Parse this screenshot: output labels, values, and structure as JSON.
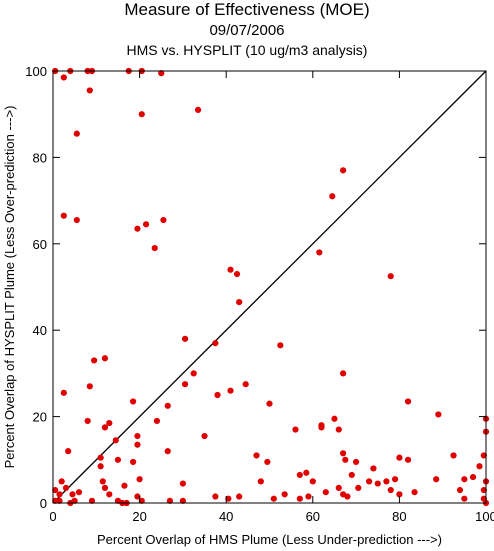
{
  "chart_data": {
    "type": "scatter",
    "title": "Measure of Effectiveness (MOE)",
    "subtitle": "09/07/2006",
    "subtitle2": "HMS vs. HYSPLIT  (10 ug/m3 analysis)",
    "xlabel": "Percent Overlap of HMS Plume (Less Under-prediction --->)",
    "ylabel": "Percent Overlap of HYSPLIT Plume (Less Over-prediction --->)",
    "xlim": [
      0,
      100
    ],
    "ylim": [
      0,
      100
    ],
    "xticks": [
      "0",
      "20",
      "40",
      "60",
      "80",
      "100"
    ],
    "yticks": [
      "0",
      "20",
      "40",
      "60",
      "80",
      "100"
    ],
    "reference_line": "y = x",
    "point_color": "#e00000",
    "points": [
      [
        0.5,
        100
      ],
      [
        2.5,
        98.5
      ],
      [
        4,
        100
      ],
      [
        8,
        100
      ],
      [
        9,
        100
      ],
      [
        17.5,
        100
      ],
      [
        20.5,
        100
      ],
      [
        25,
        99.5
      ],
      [
        8.5,
        95.5
      ],
      [
        5.5,
        85.5
      ],
      [
        20.5,
        90
      ],
      [
        33.5,
        91
      ],
      [
        67,
        77
      ],
      [
        64.5,
        71
      ],
      [
        2.5,
        66.5
      ],
      [
        5.5,
        65.5
      ],
      [
        21.5,
        64.5
      ],
      [
        25.5,
        65.5
      ],
      [
        19.5,
        63.5
      ],
      [
        23.5,
        59
      ],
      [
        61.5,
        58
      ],
      [
        41,
        54
      ],
      [
        42.5,
        53
      ],
      [
        78,
        52.5
      ],
      [
        43,
        46.5
      ],
      [
        30.5,
        38
      ],
      [
        37.5,
        37
      ],
      [
        52.5,
        36.5
      ],
      [
        9.5,
        33
      ],
      [
        12,
        33.5
      ],
      [
        32.5,
        30
      ],
      [
        67,
        30
      ],
      [
        30.5,
        27.5
      ],
      [
        2.5,
        25.5
      ],
      [
        44.5,
        27.5
      ],
      [
        41,
        26
      ],
      [
        38,
        25
      ],
      [
        8.5,
        27
      ],
      [
        18.5,
        23.5
      ],
      [
        82,
        23.5
      ],
      [
        50,
        23
      ],
      [
        26.5,
        22.5
      ],
      [
        89,
        20.5
      ],
      [
        100,
        19.5
      ],
      [
        8,
        19
      ],
      [
        13,
        18.5
      ],
      [
        24,
        19
      ],
      [
        56,
        17
      ],
      [
        62,
        17.5
      ],
      [
        62,
        18
      ],
      [
        66,
        17
      ],
      [
        65,
        19.5
      ],
      [
        12,
        17.5
      ],
      [
        100,
        16.5
      ],
      [
        35,
        15.5
      ],
      [
        19.5,
        15.5
      ],
      [
        14.5,
        14.5
      ],
      [
        3.5,
        12
      ],
      [
        11,
        10.5
      ],
      [
        19.5,
        13.5
      ],
      [
        26.5,
        12
      ],
      [
        67,
        11.5
      ],
      [
        80,
        10.5
      ],
      [
        99.5,
        11
      ],
      [
        15,
        10
      ],
      [
        11,
        8.5
      ],
      [
        18.5,
        9.5
      ],
      [
        67.5,
        10
      ],
      [
        70,
        9.5
      ],
      [
        49.5,
        9.5
      ],
      [
        47,
        11
      ],
      [
        57,
        6.5
      ],
      [
        58.5,
        7
      ],
      [
        74,
        8
      ],
      [
        82,
        10
      ],
      [
        92.5,
        11
      ],
      [
        98.5,
        8.5
      ],
      [
        60,
        5
      ],
      [
        2,
        5
      ],
      [
        11.5,
        5
      ],
      [
        20,
        5.5
      ],
      [
        48,
        5
      ],
      [
        69,
        6.5
      ],
      [
        73,
        5
      ],
      [
        77,
        5
      ],
      [
        79,
        5.5
      ],
      [
        88.5,
        5.5
      ],
      [
        95,
        5.5
      ],
      [
        97,
        6
      ],
      [
        100,
        5
      ],
      [
        0.5,
        3
      ],
      [
        3,
        3.5
      ],
      [
        12,
        3.5
      ],
      [
        16.5,
        4
      ],
      [
        30,
        4.5
      ],
      [
        66,
        3.5
      ],
      [
        70.5,
        3.5
      ],
      [
        75,
        4.5
      ],
      [
        78,
        3
      ],
      [
        83.5,
        2.5
      ],
      [
        94,
        3
      ],
      [
        99.5,
        3
      ],
      [
        1.5,
        2
      ],
      [
        4.5,
        2
      ],
      [
        6,
        2.5
      ],
      [
        13,
        2
      ],
      [
        15,
        0.5
      ],
      [
        19.5,
        1.5
      ],
      [
        37.5,
        1.5
      ],
      [
        40.5,
        1
      ],
      [
        43,
        1.5
      ],
      [
        51,
        1
      ],
      [
        53.5,
        2
      ],
      [
        57,
        1
      ],
      [
        59,
        1.5
      ],
      [
        63,
        2.5
      ],
      [
        67,
        2
      ],
      [
        68,
        1.5
      ],
      [
        80,
        2
      ],
      [
        95,
        1
      ],
      [
        99.5,
        1
      ],
      [
        0.5,
        0.5
      ],
      [
        1.5,
        0.5
      ],
      [
        4,
        0
      ],
      [
        5,
        0.5
      ],
      [
        9,
        0.5
      ],
      [
        16,
        0
      ],
      [
        17,
        0
      ],
      [
        20.5,
        0.5
      ],
      [
        27,
        0.5
      ],
      [
        30,
        0.5
      ],
      [
        100,
        0
      ]
    ]
  }
}
